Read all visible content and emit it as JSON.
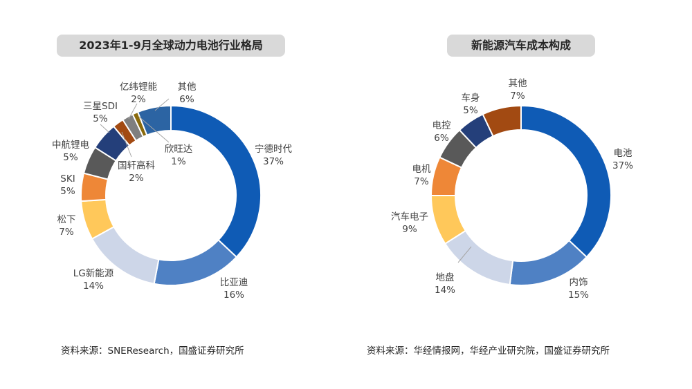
{
  "chart_data": [
    {
      "type": "pie",
      "title": "2023年1-9月全球动力电池行业格局",
      "source": "资料来源：SNEResearch，国盛证券研究所",
      "slices": [
        {
          "name": "宁德时代",
          "value": 37,
          "label": "37%",
          "color": "#0f5bb5"
        },
        {
          "name": "比亚迪",
          "value": 16,
          "label": "16%",
          "color": "#4f81c4"
        },
        {
          "name": "LG新能源",
          "value": 14,
          "label": "14%",
          "color": "#cdd6e8"
        },
        {
          "name": "松下",
          "value": 7,
          "label": "7%",
          "color": "#ffc85a"
        },
        {
          "name": "SKI",
          "value": 5,
          "label": "5%",
          "color": "#ee8737"
        },
        {
          "name": "中航锂电",
          "value": 5,
          "label": "5%",
          "color": "#595959"
        },
        {
          "name": "三星SDI",
          "value": 5,
          "label": "5%",
          "color": "#243f7a"
        },
        {
          "name": "国轩高科",
          "value": 2,
          "label": "2%",
          "color": "#a24a12"
        },
        {
          "name": "亿纬锂能",
          "value": 2,
          "label": "2%",
          "color": "#7f7f7f"
        },
        {
          "name": "欣旺达",
          "value": 1,
          "label": "1%",
          "color": "#8a6a0b"
        },
        {
          "name": "其他",
          "value": 6,
          "label": "6%",
          "color": "#2c64a3"
        }
      ]
    },
    {
      "type": "pie",
      "title": "新能源汽车成本构成",
      "source": "资料来源：华经情报网，华经产业研究院，国盛证券研究所",
      "slices": [
        {
          "name": "电池",
          "value": 37,
          "label": "37%",
          "color": "#0f5bb5"
        },
        {
          "name": "内饰",
          "value": 15,
          "label": "15%",
          "color": "#4f81c4"
        },
        {
          "name": "地盘",
          "value": 14,
          "label": "14%",
          "color": "#cdd6e8"
        },
        {
          "name": "汽车电子",
          "value": 9,
          "label": "9%",
          "color": "#ffc85a"
        },
        {
          "name": "电机",
          "value": 7,
          "label": "7%",
          "color": "#ee8737"
        },
        {
          "name": "电控",
          "value": 6,
          "label": "6%",
          "color": "#595959"
        },
        {
          "name": "车身",
          "value": 5,
          "label": "5%",
          "color": "#243f7a"
        },
        {
          "name": "其他",
          "value": 7,
          "label": "7%",
          "color": "#a24a12"
        }
      ]
    }
  ]
}
